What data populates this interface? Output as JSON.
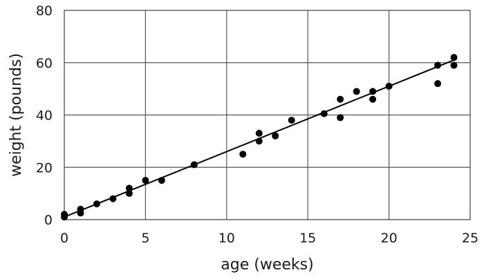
{
  "chart_data": {
    "type": "scatter",
    "title": "",
    "xlabel": "age (weeks)",
    "ylabel": "weight (pounds)",
    "xlim": [
      0,
      25
    ],
    "ylim": [
      0,
      80
    ],
    "x_ticks": [
      0,
      5,
      10,
      15,
      20,
      25
    ],
    "y_ticks": [
      0,
      20,
      40,
      60,
      80
    ],
    "grid": true,
    "legend": "none",
    "points": [
      {
        "x": 0,
        "y": 1
      },
      {
        "x": 0,
        "y": 2
      },
      {
        "x": 1,
        "y": 2.5
      },
      {
        "x": 1,
        "y": 4
      },
      {
        "x": 2,
        "y": 6
      },
      {
        "x": 3,
        "y": 8
      },
      {
        "x": 4,
        "y": 10
      },
      {
        "x": 4,
        "y": 12
      },
      {
        "x": 5,
        "y": 15
      },
      {
        "x": 6,
        "y": 15
      },
      {
        "x": 8,
        "y": 21
      },
      {
        "x": 11,
        "y": 25
      },
      {
        "x": 12,
        "y": 30
      },
      {
        "x": 12,
        "y": 33
      },
      {
        "x": 13,
        "y": 32
      },
      {
        "x": 14,
        "y": 38
      },
      {
        "x": 16,
        "y": 40.5
      },
      {
        "x": 17,
        "y": 39
      },
      {
        "x": 17,
        "y": 46
      },
      {
        "x": 18,
        "y": 49
      },
      {
        "x": 19,
        "y": 46
      },
      {
        "x": 19,
        "y": 49
      },
      {
        "x": 20,
        "y": 51
      },
      {
        "x": 23,
        "y": 52
      },
      {
        "x": 23,
        "y": 59
      },
      {
        "x": 24,
        "y": 59
      },
      {
        "x": 24,
        "y": 62
      }
    ],
    "fit_line": {
      "x": [
        0,
        24
      ],
      "y": [
        1,
        61
      ]
    },
    "colors": {
      "points": "#000000",
      "fit_line": "#000000",
      "grid": "#555555"
    }
  }
}
